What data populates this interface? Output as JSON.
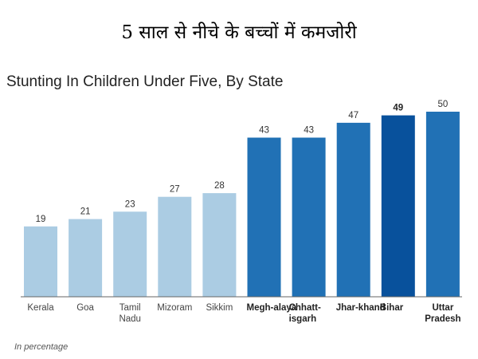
{
  "headline": "5 साल से नीचे के बच्चों में कमजोरी",
  "chart_data": {
    "type": "bar",
    "title": "Stunting In Children Under Five, By State",
    "categories": [
      [
        "Kerala"
      ],
      [
        "Goa"
      ],
      [
        "Tamil",
        "Nadu"
      ],
      [
        "Mizoram"
      ],
      [
        "Sikkim"
      ],
      [
        "Megh-alaya"
      ],
      [
        "Chhatt-",
        "isgarh"
      ],
      [
        "Jhar-khand"
      ],
      [
        "Bihar"
      ],
      [
        "Uttar",
        "Pradesh"
      ]
    ],
    "values": [
      19,
      21,
      23,
      27,
      28,
      43,
      43,
      47,
      49,
      50
    ],
    "value_labels": [
      "19",
      "21",
      "23",
      "27",
      "28",
      "43",
      "43",
      "47",
      "49",
      "50"
    ],
    "ylim": [
      0,
      50
    ],
    "grid": false,
    "legend": "none",
    "note": "In percentage"
  },
  "colors": {
    "light": "#abcce3",
    "medium": "#2171b5",
    "dark": "#08519c",
    "baseline": "#666666"
  },
  "bar_tones": [
    "light",
    "light",
    "light",
    "light",
    "light",
    "medium",
    "medium",
    "medium",
    "dark",
    "medium"
  ],
  "bold_categories": [
    false,
    false,
    false,
    false,
    false,
    true,
    true,
    true,
    true,
    true
  ]
}
